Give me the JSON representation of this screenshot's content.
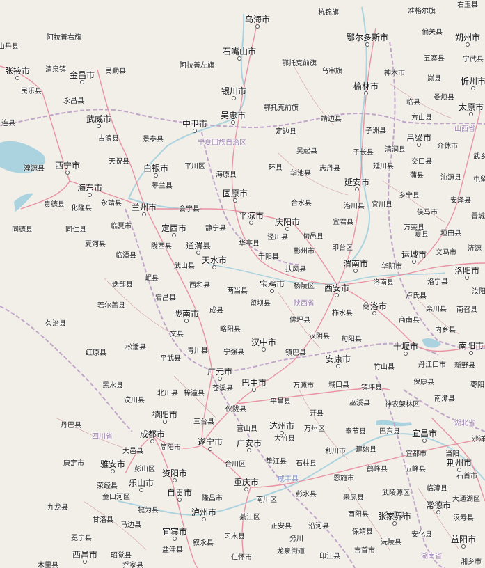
{
  "map": {
    "colors": {
      "land": "#f2efe9",
      "water": "#aad3df",
      "road": "#e892a2",
      "border": "#c0a5c9",
      "minor": "#d6a6a6"
    },
    "water_names": [
      "qinghai-lake",
      "danjiangkou-reservoir",
      "three-gorges"
    ],
    "labels": {
      "wuhai": "乌海市",
      "hangjin": "杭锦旗",
      "zhungeer": "准格尔旗",
      "youyu": "右玉县",
      "alashan_right": "阿拉善右旗",
      "ordos": "鄂尔多斯市",
      "pianguan": "偏关县",
      "shuozhou": "朔州市",
      "shizuishan": "石嘴山市",
      "alashan_left": "阿拉善左旗",
      "otog_front": "鄂托克前旗",
      "wuzhai": "五寨县",
      "ningwu": "宁武县",
      "shandan": "山丹县",
      "zhangye": "张掖市",
      "qingquan": "清泉镇",
      "jinchang": "金昌市",
      "minle": "民勤县",
      "wushen": "乌审旗",
      "shenmu": "神木市",
      "lanxian": "岚县",
      "xinzhou": "忻州市",
      "minle2": "民乐县",
      "yongchang": "永昌县",
      "yinchuan": "银川市",
      "yulin": "榆林市",
      "loufan": "娄烦县",
      "wuzhong": "吴忠市",
      "otog": "鄂托克前旗",
      "linxian": "临县",
      "taiyuan": "太原市",
      "wuwei": "武威市",
      "zhongwei": "中卫市",
      "jingbian": "靖边县",
      "fangshan": "方山县",
      "lianxian": "连县",
      "gulang": "古浪县",
      "jingtai": "景泰县",
      "ningxia": "宁夏回族自治区",
      "dingbian": "定边县",
      "zizhou": "子洲县",
      "lvliang": "吕梁市",
      "shanxi_prov": "山西省",
      "xining": "西宁市",
      "tianzhu": "天祝县",
      "wuqi": "吴起县",
      "zichang": "子长县",
      "qingjian": "清涧县",
      "jiexiu": "介休市",
      "wuxiang": "武乡",
      "huangyuan": "湟源县",
      "baiyin": "白银市",
      "pingchuan": "平川区",
      "haiyuan": "海原县",
      "huanxian": "环县",
      "huachi": "华池县",
      "zhidan": "志丹县",
      "yanchuan": "延川县",
      "jiaokou": "交口县",
      "haidong": "海东市",
      "gaolan": "皋兰县",
      "yanan": "延安市",
      "puxian": "蒲县",
      "qinyuan": "沁源县",
      "tunliu": "屯留",
      "guyuan": "固原市",
      "xiangning": "乡宁县",
      "guide": "贵德县",
      "hualong": "化隆县",
      "yongjing": "永靖县",
      "lanzhou": "兰州市",
      "huining": "会宁县",
      "heshui": "合水县",
      "luochuan": "洛川县",
      "yichuan": "宜川县",
      "anze": "安泽县",
      "pingliang": "平凉市",
      "houma": "侯马市",
      "tongde": "同德县",
      "tongren": "同仁县",
      "linxia": "临夏市",
      "dingxi": "定西市",
      "jingning": "静宁县",
      "qingyang": "庆阳市",
      "yijun": "宜君县",
      "wanrong": "万荣县",
      "yuanqu": "垣曲县",
      "jincheng": "晋城",
      "xiahe": "夏河县",
      "longxi": "陇西县",
      "tongwei": "通渭县",
      "huating": "华亭县",
      "jingchuan": "泾川县",
      "xunyi": "旬邑县",
      "xiaxian": "夏县",
      "jiyuan": "济源",
      "lintan": "临潭县",
      "tianshui": "天水市",
      "qianyang": "千阳县",
      "binzhou": "彬州市",
      "yintai": "印台区",
      "yuncheng": "运城市",
      "yima": "义马市",
      "wushan": "武山县",
      "fufeng": "扶风县",
      "weinan": "渭南市",
      "huayin": "华阴市",
      "luoyang": "洛阳市",
      "minxian": "岷县",
      "diebu": "迭部县",
      "xihe": "西和县",
      "liangdang": "两当县",
      "baoji": "宝鸡市",
      "yangling": "杨陵区",
      "xian": "西安市",
      "luonan": "洛南县",
      "luoning": "洛宁县",
      "ruyang": "汝阳",
      "zhouqu": "宕昌县",
      "ruoergai": "若尔盖县",
      "chengxian": "成县",
      "liuba": "留坝县",
      "shanxi_sx": "陕西省",
      "zhashui": "柞水县",
      "shangluo": "商洛市",
      "lushi": "卢氏县",
      "luanchuan": "栾川县",
      "nanzhao": "南召县",
      "longnan": "陇南市",
      "foping": "佛坪县",
      "shangnan": "商南县",
      "jiuzhi": "久治县",
      "lueyang": "略阳县",
      "neixiang": "内乡县",
      "wenxian": "文县",
      "hanzhong": "汉中市",
      "hanyin": "汉阴县",
      "xunyang": "旬阳县",
      "shiyan": "十堰市",
      "nanyang": "南阳市",
      "hongyuan": "红原县",
      "songpan": "松潘县",
      "qingchuan": "青川县",
      "ningqiang": "宁强县",
      "zhenba": "镇巴县",
      "ankang": "安康市",
      "zhushan": "竹山县",
      "danjiangkou": "丹江口市",
      "xinye": "新野县",
      "pingwu": "平武县",
      "guangyuan": "广元市",
      "baokang": "保康县",
      "zaoyang": "枣阳",
      "heishui": "黑水县",
      "cangxi": "苍溪县",
      "bazhong": "巴中市",
      "wanyuan": "万源市",
      "chengkou": "城口县",
      "zhenping": "镇坪县",
      "nanzhang": "南漳县",
      "wenchuan": "汶川县",
      "beichuan": "北川县",
      "zitong": "梓潼县",
      "yilong": "仪陇县",
      "pingchang": "平昌县",
      "wuxi": "巫溪县",
      "shennongjia": "神农架林区",
      "danba": "丹巴县",
      "deyang": "德阳市",
      "santai": "三台县",
      "kaixian": "开县",
      "hubei": "湖北省",
      "sichuan": "四川省",
      "chengdu": "成都市",
      "yingshan": "营山县",
      "dazhou": "达州市",
      "fengjie": "奉节县",
      "badong": "巴东县",
      "yichang": "宜昌市",
      "shayang": "沙洋",
      "dayi": "大邑县",
      "jianyang": "简阳市",
      "suining": "遂宁市",
      "guangan": "广安市",
      "dazhu": "大竹县",
      "wanzhou": "万州区",
      "lichuan": "利川市",
      "jianshi": "建始县",
      "dangyang": "当阳",
      "kangding": "康定市",
      "yaan": "雅安市",
      "pengshan": "彭山区",
      "hechuan": "合川区",
      "dianjiang": "垫江县",
      "shizhu": "石柱县",
      "enshi": "恩施市",
      "yidu": "宜都市",
      "jingzhou": "荆州市",
      "xingjing": "荥经县",
      "leshan": "乐山市",
      "ziyang": "资阳市",
      "chongqing": "重庆市",
      "xianfeng": "咸丰县",
      "hefeng": "鹤峰县",
      "wufeng": "五峰县",
      "shishou": "石首市",
      "jinkouhe": "金口河区",
      "zigong": "自贡市",
      "longchang": "隆昌市",
      "nanchuan": "南川区",
      "pengshui": "彭水县",
      "laifeng": "来凤县",
      "wulingyuan": "武陵源区",
      "linli": "临澧县",
      "datong": "大通湖区",
      "jiulong": "九龙县",
      "qianwei": "犍为县",
      "luzhou": "泸州市",
      "qijiang": "綦江区",
      "youyang": "酉阳县",
      "yongshun": "永顺县",
      "zhangjiajie": "张家界市",
      "changde": "常德市",
      "ganluo": "甘洛县",
      "mabian": "马边县",
      "yanhe": "沿河县",
      "anhua": "安化县",
      "hanshou": "汉寿县",
      "mianning": "冕宁县",
      "yibin": "宜宾市",
      "xishui": "习水县",
      "zhengan": "正安县",
      "baojing": "保靖县",
      "yuanling": "沅陵县",
      "yiyang": "益阳市",
      "xichang": "西昌市",
      "zhaojue": "昭觉县",
      "yanjin": "盐津县",
      "xuyong": "叙永县",
      "renhuai": "仁怀市",
      "wuchuan": "务川",
      "longxin": "龙泉街道",
      "yinjiang": "印江县",
      "jishou": "吉首市",
      "hunan": "湖南省",
      "xiangxiang": "湘乡市",
      "muli": "木里县",
      "jiulong2": "久治县",
      "qiaojia": "乔家县"
    }
  }
}
